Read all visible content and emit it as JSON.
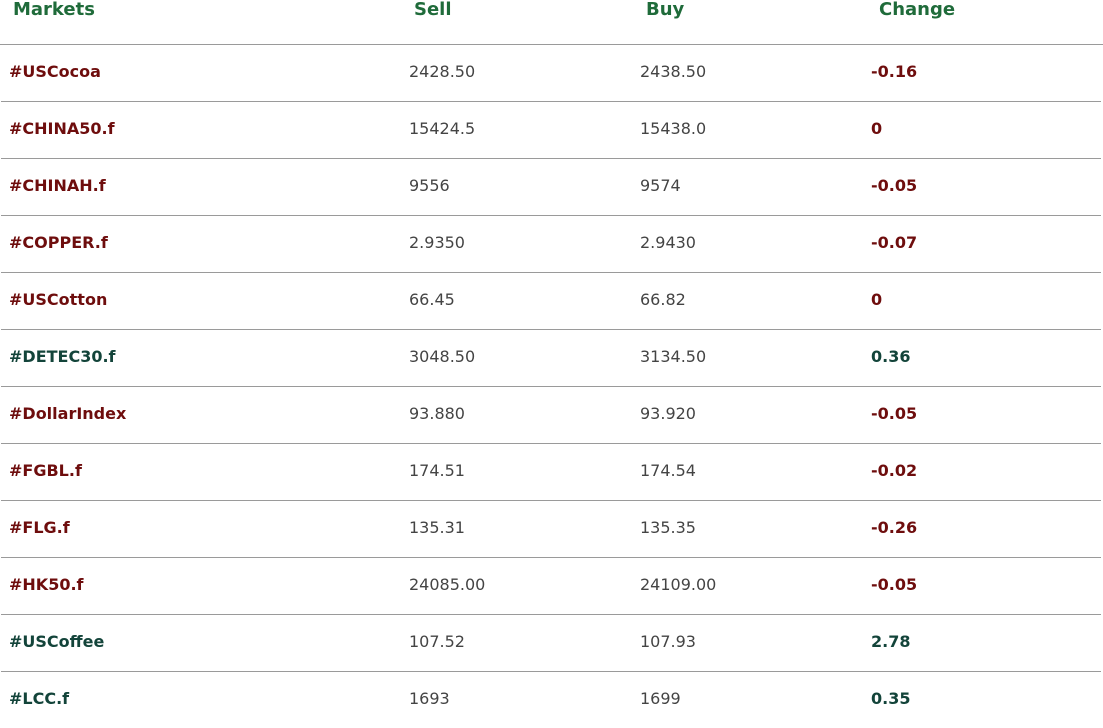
{
  "header": {
    "markets": "Markets",
    "sell": "Sell",
    "buy": "Buy",
    "change": "Change"
  },
  "colors": {
    "header_text": "#1f6b3a",
    "negative_or_flat": "#6e0d0d",
    "positive": "#13443a",
    "price_text": "#444444",
    "row_divider": "#9a9a9a"
  },
  "rows": [
    {
      "market": "#USCocoa",
      "sell": "2428.50",
      "buy": "2438.50",
      "change": "-0.16",
      "trend": "neg"
    },
    {
      "market": "#CHINA50.f",
      "sell": "15424.5",
      "buy": "15438.0",
      "change": "0",
      "trend": "neg"
    },
    {
      "market": "#CHINAH.f",
      "sell": "9556",
      "buy": "9574",
      "change": "-0.05",
      "trend": "neg"
    },
    {
      "market": "#COPPER.f",
      "sell": "2.9350",
      "buy": "2.9430",
      "change": "-0.07",
      "trend": "neg"
    },
    {
      "market": "#USCotton",
      "sell": "66.45",
      "buy": "66.82",
      "change": "0",
      "trend": "neg"
    },
    {
      "market": "#DETEC30.f",
      "sell": "3048.50",
      "buy": "3134.50",
      "change": "0.36",
      "trend": "pos"
    },
    {
      "market": "#DollarIndex",
      "sell": "93.880",
      "buy": "93.920",
      "change": "-0.05",
      "trend": "neg"
    },
    {
      "market": "#FGBL.f",
      "sell": "174.51",
      "buy": "174.54",
      "change": "-0.02",
      "trend": "neg"
    },
    {
      "market": "#FLG.f",
      "sell": "135.31",
      "buy": "135.35",
      "change": "-0.26",
      "trend": "neg"
    },
    {
      "market": "#HK50.f",
      "sell": "24085.00",
      "buy": "24109.00",
      "change": "-0.05",
      "trend": "neg"
    },
    {
      "market": "#USCoffee",
      "sell": "107.52",
      "buy": "107.93",
      "change": "2.78",
      "trend": "pos"
    },
    {
      "market": "#LCC.f",
      "sell": "1693",
      "buy": "1699",
      "change": "0.35",
      "trend": "pos"
    }
  ]
}
